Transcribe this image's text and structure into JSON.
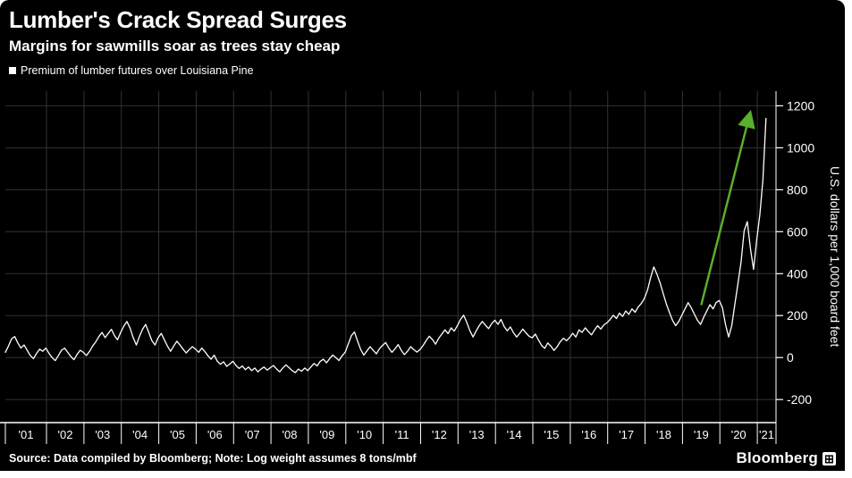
{
  "header": {
    "title": "Lumber's Crack Spread Surges",
    "subtitle": "Margins for sawmills soar as trees stay cheap"
  },
  "chart_data": {
    "type": "line",
    "title": "Lumber's Crack Spread Surges",
    "ylabel": "U.S. dollars per 1,000 board feet",
    "ylim": [
      -310,
      1270
    ],
    "xlim": [
      2000.9,
      2021.5
    ],
    "yticks": [
      -200,
      0,
      200,
      400,
      600,
      800,
      1000,
      1200
    ],
    "xticks": [
      2001,
      2002,
      2003,
      2004,
      2005,
      2006,
      2007,
      2008,
      2009,
      2010,
      2011,
      2012,
      2013,
      2014,
      2015,
      2016,
      2017,
      2018,
      2019,
      2020,
      2021
    ],
    "xtick_labels": [
      "'01",
      "'02",
      "'03",
      "'04",
      "'05",
      "'06",
      "'07",
      "'08",
      "'09",
      "'10",
      "'11",
      "'12",
      "'13",
      "'14",
      "'15",
      "'16",
      "'17",
      "'18",
      "'19",
      "'20",
      "'21"
    ],
    "grid": true,
    "legend_position": "top-left",
    "series": [
      {
        "name": "Premium of lumber futures over Louisiana Pine",
        "color": "#ffffff",
        "start": 2000.9,
        "step": 0.083333,
        "values": [
          25,
          55,
          90,
          100,
          70,
          45,
          60,
          35,
          10,
          -5,
          20,
          40,
          30,
          45,
          20,
          0,
          -15,
          10,
          35,
          45,
          25,
          5,
          -10,
          15,
          35,
          25,
          10,
          30,
          55,
          75,
          100,
          120,
          95,
          115,
          135,
          105,
          85,
          120,
          150,
          172,
          140,
          95,
          60,
          100,
          135,
          158,
          120,
          80,
          60,
          95,
          115,
          85,
          55,
          30,
          55,
          78,
          60,
          40,
          22,
          38,
          52,
          40,
          25,
          45,
          28,
          8,
          -8,
          12,
          -18,
          -32,
          -20,
          -42,
          -30,
          -18,
          -38,
          -52,
          -40,
          -58,
          -45,
          -62,
          -50,
          -68,
          -55,
          -45,
          -60,
          -48,
          -38,
          -55,
          -68,
          -50,
          -35,
          -48,
          -62,
          -72,
          -55,
          -65,
          -50,
          -62,
          -45,
          -28,
          -40,
          -18,
          -8,
          -25,
          -5,
          12,
          0,
          -14,
          8,
          25,
          65,
          105,
          122,
          78,
          38,
          12,
          32,
          52,
          34,
          18,
          42,
          58,
          72,
          45,
          25,
          42,
          62,
          34,
          14,
          30,
          52,
          38,
          26,
          38,
          58,
          82,
          102,
          86,
          64,
          92,
          112,
          132,
          114,
          142,
          126,
          152,
          182,
          202,
          168,
          128,
          98,
          126,
          152,
          172,
          154,
          138,
          162,
          178,
          158,
          182,
          148,
          128,
          146,
          118,
          98,
          116,
          136,
          118,
          102,
          94,
          112,
          84,
          58,
          44,
          70,
          54,
          34,
          52,
          76,
          92,
          80,
          96,
          116,
          98,
          132,
          120,
          142,
          124,
          108,
          132,
          152,
          136,
          156,
          166,
          182,
          202,
          186,
          212,
          196,
          222,
          206,
          232,
          216,
          242,
          258,
          282,
          322,
          382,
          432,
          398,
          356,
          306,
          256,
          216,
          178,
          152,
          172,
          202,
          232,
          262,
          238,
          208,
          178,
          158,
          192,
          222,
          252,
          232,
          262,
          272,
          238,
          158,
          98,
          152,
          255,
          355,
          455,
          605,
          648,
          520,
          420,
          560,
          680,
          850,
          1140
        ]
      }
    ],
    "annotation_arrow": {
      "from": [
        2019.5,
        250
      ],
      "to": [
        2020.8,
        1160
      ],
      "color": "#5aaf2c"
    }
  },
  "footer": {
    "source": "Source: Data compiled by Bloomberg; Note: Log weight assumes 8 tons/mbf",
    "brand": "Bloomberg"
  },
  "icons": {
    "bloomberg_mark": "⊞"
  },
  "colors": {
    "background": "#000000",
    "text": "#ffffff",
    "gridline": "#333333",
    "series": "#ffffff",
    "arrow": "#5aaf2c"
  }
}
